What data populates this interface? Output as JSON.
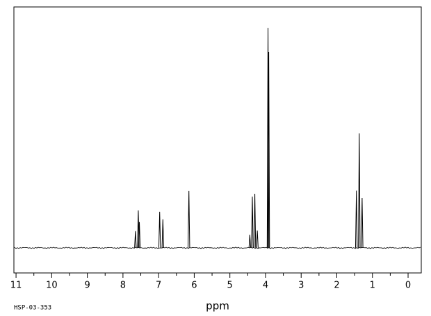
{
  "chart_data": {
    "type": "spectrum",
    "x_label": "ppm",
    "footnote": "HSP-03-353",
    "x": [
      7.65,
      7.57,
      7.54,
      6.97,
      6.88,
      6.15,
      4.44,
      4.37,
      4.3,
      4.23,
      3.93,
      3.91,
      1.45,
      1.37,
      1.29
    ],
    "values": [
      7.6,
      17,
      11.7,
      16.4,
      13,
      25.9,
      6,
      23.3,
      24.6,
      7.9,
      100,
      89,
      26,
      52,
      22.7
    ],
    "color": "#000000",
    "xlim": [
      11.06,
      -0.37
    ],
    "ylim": [
      -11.4,
      109.5
    ],
    "xticks": [
      11,
      10,
      9,
      8,
      7,
      6,
      5,
      4,
      3,
      2,
      1,
      0
    ],
    "xminorticks": [
      10.5,
      9.5,
      8.5,
      7.5,
      6.5,
      5.5,
      4.5,
      3.5,
      2.5,
      1.5,
      0.5
    ]
  }
}
